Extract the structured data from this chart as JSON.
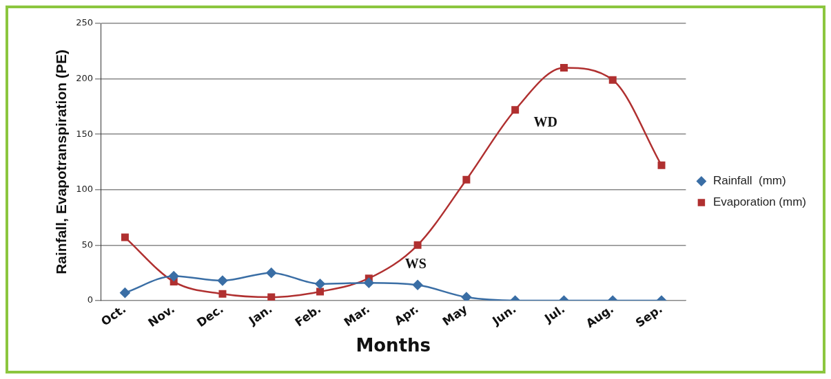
{
  "chart_data": {
    "type": "line",
    "xlabel": "Months",
    "ylabel": "Rainfall, Evapotranspiration (PE)",
    "categories": [
      "Oct.",
      "Nov.",
      "Dec.",
      "Jan.",
      "Feb.",
      "Mar.",
      "Apr.",
      "May",
      "Jun.",
      "Jul.",
      "Aug.",
      "Sep."
    ],
    "series": [
      {
        "name": "Rainfall  (mm)",
        "color": "#3a6ea5",
        "marker": "diamond",
        "values": [
          7,
          22,
          18,
          25,
          15,
          16,
          14,
          3,
          0,
          0,
          0,
          0
        ]
      },
      {
        "name": "Evaporation (mm)",
        "color": "#b03030",
        "marker": "square",
        "values": [
          57,
          17,
          6,
          3,
          8,
          20,
          50,
          109,
          172,
          210,
          199,
          122
        ]
      }
    ],
    "ylim": [
      0,
      250
    ],
    "yticks": [
      0,
      50,
      100,
      150,
      200,
      250
    ],
    "grid": "y",
    "legend": "right",
    "annotations": [
      "WD",
      "WS"
    ]
  }
}
